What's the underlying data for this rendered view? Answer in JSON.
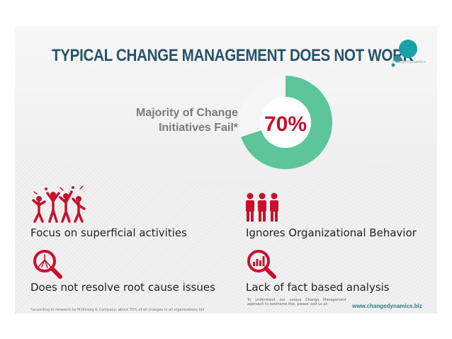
{
  "header": {
    "title": "TYPICAL CHANGE MANAGEMENT DOES NOT WORK",
    "logo_text": "ChangeDynamics"
  },
  "stat": {
    "label_line1": "Majority of Change",
    "label_line2": "Initiatives Fail*",
    "value_text": "70%"
  },
  "colors": {
    "accent": "#5cc59a",
    "ring_bg": "#f6f6f6",
    "title": "#24536a",
    "value": "#c8102e",
    "icon": "#c8102e"
  },
  "chart_data": {
    "type": "pie",
    "title": "",
    "slices": [
      {
        "label": "Fail",
        "value": 70
      },
      {
        "label": "",
        "value": 30
      }
    ],
    "center_label": "70%"
  },
  "items": [
    {
      "label": "Focus on superficial activities",
      "icon": "crowd-icon"
    },
    {
      "label": "Ignores Organizational Behavior",
      "icon": "people-group-icon"
    },
    {
      "label": "Does not resolve root cause issues",
      "icon": "magnifier-roots-icon"
    },
    {
      "label": "Lack of fact based analysis",
      "icon": "magnifier-chart-icon"
    }
  ],
  "footer": {
    "footnote": "*according to research by McKinsey & Company, about 70% of all changes in all organizations fail",
    "cta": "To understand our unique Change Management approach to overcome this, please visit us at:",
    "website": "www.changedynamics.biz"
  }
}
